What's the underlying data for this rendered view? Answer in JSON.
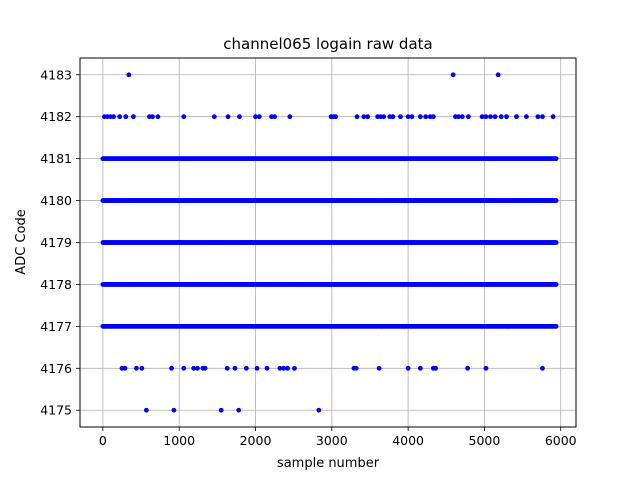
{
  "chart_data": {
    "type": "scatter",
    "title": "channel065 logain raw data",
    "xlabel": "sample number",
    "ylabel": "ADC Code",
    "xlim": [
      -300,
      6200
    ],
    "ylim": [
      4174.6,
      4183.4
    ],
    "xticks": [
      0,
      1000,
      2000,
      3000,
      4000,
      5000,
      6000
    ],
    "yticks": [
      4175,
      4176,
      4177,
      4178,
      4179,
      4180,
      4181,
      4182,
      4183
    ],
    "grid": true,
    "marker_color": "#0000ff",
    "series": [
      {
        "name": "",
        "dense_rows": [
          {
            "y": 4181,
            "x_range": [
              0,
              5950
            ]
          },
          {
            "y": 4180,
            "x_range": [
              0,
              5950
            ]
          },
          {
            "y": 4179,
            "x_range": [
              0,
              5950
            ]
          },
          {
            "y": 4178,
            "x_range": [
              0,
              5950
            ]
          },
          {
            "y": 4177,
            "x_range": [
              0,
              5950
            ]
          }
        ],
        "points": [
          {
            "x": 340,
            "y": 4183
          },
          {
            "x": 4590,
            "y": 4183
          },
          {
            "x": 5180,
            "y": 4183
          },
          {
            "x": 20,
            "y": 4182
          },
          {
            "x": 60,
            "y": 4182
          },
          {
            "x": 100,
            "y": 4182
          },
          {
            "x": 140,
            "y": 4182
          },
          {
            "x": 220,
            "y": 4182
          },
          {
            "x": 300,
            "y": 4182
          },
          {
            "x": 400,
            "y": 4182
          },
          {
            "x": 610,
            "y": 4182
          },
          {
            "x": 650,
            "y": 4182
          },
          {
            "x": 720,
            "y": 4182
          },
          {
            "x": 1060,
            "y": 4182
          },
          {
            "x": 1460,
            "y": 4182
          },
          {
            "x": 1640,
            "y": 4182
          },
          {
            "x": 1790,
            "y": 4182
          },
          {
            "x": 2000,
            "y": 4182
          },
          {
            "x": 2050,
            "y": 4182
          },
          {
            "x": 2210,
            "y": 4182
          },
          {
            "x": 2250,
            "y": 4182
          },
          {
            "x": 2450,
            "y": 4182
          },
          {
            "x": 2990,
            "y": 4182
          },
          {
            "x": 3020,
            "y": 4182
          },
          {
            "x": 3050,
            "y": 4182
          },
          {
            "x": 3330,
            "y": 4182
          },
          {
            "x": 3420,
            "y": 4182
          },
          {
            "x": 3470,
            "y": 4182
          },
          {
            "x": 3600,
            "y": 4182
          },
          {
            "x": 3640,
            "y": 4182
          },
          {
            "x": 3680,
            "y": 4182
          },
          {
            "x": 3760,
            "y": 4182
          },
          {
            "x": 3800,
            "y": 4182
          },
          {
            "x": 3900,
            "y": 4182
          },
          {
            "x": 4000,
            "y": 4182
          },
          {
            "x": 4050,
            "y": 4182
          },
          {
            "x": 4160,
            "y": 4182
          },
          {
            "x": 4230,
            "y": 4182
          },
          {
            "x": 4290,
            "y": 4182
          },
          {
            "x": 4330,
            "y": 4182
          },
          {
            "x": 4620,
            "y": 4182
          },
          {
            "x": 4660,
            "y": 4182
          },
          {
            "x": 4710,
            "y": 4182
          },
          {
            "x": 4790,
            "y": 4182
          },
          {
            "x": 4970,
            "y": 4182
          },
          {
            "x": 5020,
            "y": 4182
          },
          {
            "x": 5080,
            "y": 4182
          },
          {
            "x": 5140,
            "y": 4182
          },
          {
            "x": 5220,
            "y": 4182
          },
          {
            "x": 5290,
            "y": 4182
          },
          {
            "x": 5420,
            "y": 4182
          },
          {
            "x": 5550,
            "y": 4182
          },
          {
            "x": 5700,
            "y": 4182
          },
          {
            "x": 5760,
            "y": 4182
          },
          {
            "x": 5900,
            "y": 4182
          },
          {
            "x": 250,
            "y": 4176
          },
          {
            "x": 290,
            "y": 4176
          },
          {
            "x": 440,
            "y": 4176
          },
          {
            "x": 510,
            "y": 4176
          },
          {
            "x": 900,
            "y": 4176
          },
          {
            "x": 1060,
            "y": 4176
          },
          {
            "x": 1190,
            "y": 4176
          },
          {
            "x": 1240,
            "y": 4176
          },
          {
            "x": 1310,
            "y": 4176
          },
          {
            "x": 1340,
            "y": 4176
          },
          {
            "x": 1630,
            "y": 4176
          },
          {
            "x": 1730,
            "y": 4176
          },
          {
            "x": 1880,
            "y": 4176
          },
          {
            "x": 2020,
            "y": 4176
          },
          {
            "x": 2150,
            "y": 4176
          },
          {
            "x": 2320,
            "y": 4176
          },
          {
            "x": 2370,
            "y": 4176
          },
          {
            "x": 2420,
            "y": 4176
          },
          {
            "x": 2510,
            "y": 4176
          },
          {
            "x": 3290,
            "y": 4176
          },
          {
            "x": 3320,
            "y": 4176
          },
          {
            "x": 3620,
            "y": 4176
          },
          {
            "x": 4000,
            "y": 4176
          },
          {
            "x": 4160,
            "y": 4176
          },
          {
            "x": 4330,
            "y": 4176
          },
          {
            "x": 4360,
            "y": 4176
          },
          {
            "x": 4780,
            "y": 4176
          },
          {
            "x": 5020,
            "y": 4176
          },
          {
            "x": 5760,
            "y": 4176
          },
          {
            "x": 570,
            "y": 4175
          },
          {
            "x": 930,
            "y": 4175
          },
          {
            "x": 1550,
            "y": 4175
          },
          {
            "x": 1780,
            "y": 4175
          },
          {
            "x": 2830,
            "y": 4175
          }
        ]
      }
    ]
  }
}
